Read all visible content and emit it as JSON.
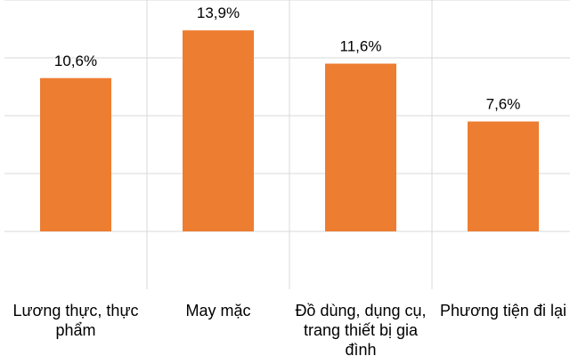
{
  "chart_data": {
    "type": "bar",
    "categories": [
      "Lương thực, thực phẩm",
      "May mặc",
      "Đồ dùng, dụng cụ, trang thiết bị gia đình",
      "Phương tiện đi lại"
    ],
    "values": [
      10.6,
      13.9,
      11.6,
      7.6
    ],
    "value_labels": [
      "10,6%",
      "13,9%",
      "11,6%",
      "7,6%"
    ],
    "color": "#ed7d31",
    "ylim": [
      -4,
      16
    ],
    "yticks": [
      0,
      4,
      8,
      12,
      16
    ],
    "grid": true
  }
}
